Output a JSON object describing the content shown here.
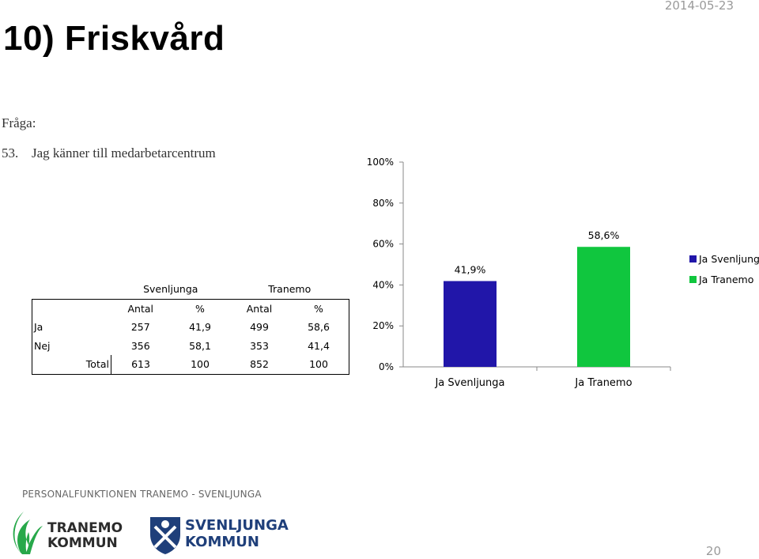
{
  "header": {
    "title": "10) Friskvård",
    "date": "2014-05-23"
  },
  "question": {
    "label": "Fråga:",
    "number": "53.",
    "text": "Jag känner till medarbetarcentrum"
  },
  "table": {
    "group_headers": [
      "Svenljunga",
      "Tranemo"
    ],
    "sub_headers": [
      "Antal",
      "%",
      "Antal",
      "%"
    ],
    "rows": [
      {
        "label": "Ja",
        "values": [
          "257",
          "41,9",
          "499",
          "58,6"
        ]
      },
      {
        "label": "Nej",
        "values": [
          "356",
          "58,1",
          "353",
          "41,4"
        ]
      },
      {
        "label": "Total",
        "values": [
          "613",
          "100",
          "852",
          "100"
        ]
      }
    ]
  },
  "chart_data": {
    "type": "bar",
    "categories": [
      "Ja Svenljunga",
      "Ja Tranemo"
    ],
    "values": [
      41.9,
      58.6
    ],
    "data_labels": [
      "41,9%",
      "58,6%"
    ],
    "colors": [
      "#2116a9",
      "#10c63e"
    ],
    "ylim": [
      0,
      100
    ],
    "yticks": [
      0,
      20,
      40,
      60,
      80,
      100
    ],
    "ytick_labels": [
      "0%",
      "20%",
      "40%",
      "60%",
      "80%",
      "100%"
    ],
    "legend": [
      "Ja Svenljunga",
      "Ja Tranemo"
    ],
    "legend_position": "right",
    "grid": false
  },
  "footer": {
    "text": "PERSONALFUNKTIONEN TRANEMO - SVENLJUNGA",
    "logo_tranemo": [
      "TRANEMO",
      "KOMMUN"
    ],
    "logo_svenljunga": [
      "SVENLJUNGA",
      "KOMMUN"
    ],
    "page_number": "20"
  }
}
